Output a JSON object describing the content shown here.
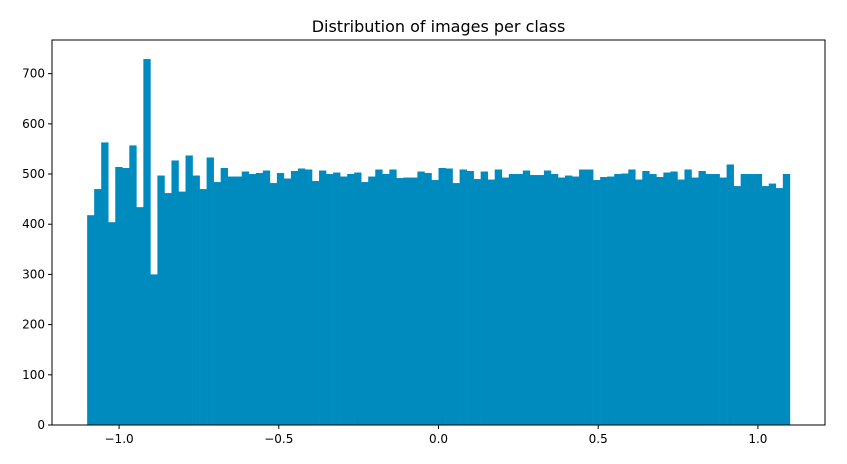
{
  "chart_data": {
    "type": "bar",
    "title": "Distribution of images per class",
    "xlabel": "",
    "ylabel": "",
    "xlim": [
      -1.21,
      1.21
    ],
    "ylim": [
      0,
      767
    ],
    "x_ticks": [
      -1.0,
      -0.5,
      0.0,
      0.5,
      1.0
    ],
    "x_tick_labels": [
      "−1.0",
      "−0.5",
      "0.0",
      "0.5",
      "1.0"
    ],
    "y_ticks": [
      0,
      100,
      200,
      300,
      400,
      500,
      600,
      700
    ],
    "y_tick_labels": [
      "0",
      "100",
      "200",
      "300",
      "400",
      "500",
      "600",
      "700"
    ],
    "bin_range": [
      -1.1,
      1.1
    ],
    "bar_color": "#008bbf",
    "grid": false,
    "values": [
      418,
      470,
      563,
      404,
      514,
      512,
      557,
      434,
      729,
      300,
      497,
      462,
      527,
      465,
      537,
      497,
      470,
      533,
      484,
      512,
      495,
      495,
      505,
      500,
      502,
      507,
      482,
      502,
      491,
      506,
      511,
      509,
      486,
      507,
      500,
      503,
      495,
      500,
      503,
      484,
      495,
      509,
      500,
      509,
      492,
      493,
      493,
      505,
      502,
      488,
      512,
      511,
      482,
      509,
      506,
      490,
      505,
      489,
      509,
      493,
      500,
      500,
      507,
      498,
      498,
      507,
      500,
      493,
      497,
      495,
      509,
      509,
      488,
      494,
      495,
      500,
      501,
      509,
      489,
      506,
      500,
      494,
      503,
      505,
      489,
      509,
      493,
      506,
      500,
      500,
      493,
      519,
      476,
      500,
      500,
      500,
      476,
      481,
      472,
      500
    ]
  }
}
